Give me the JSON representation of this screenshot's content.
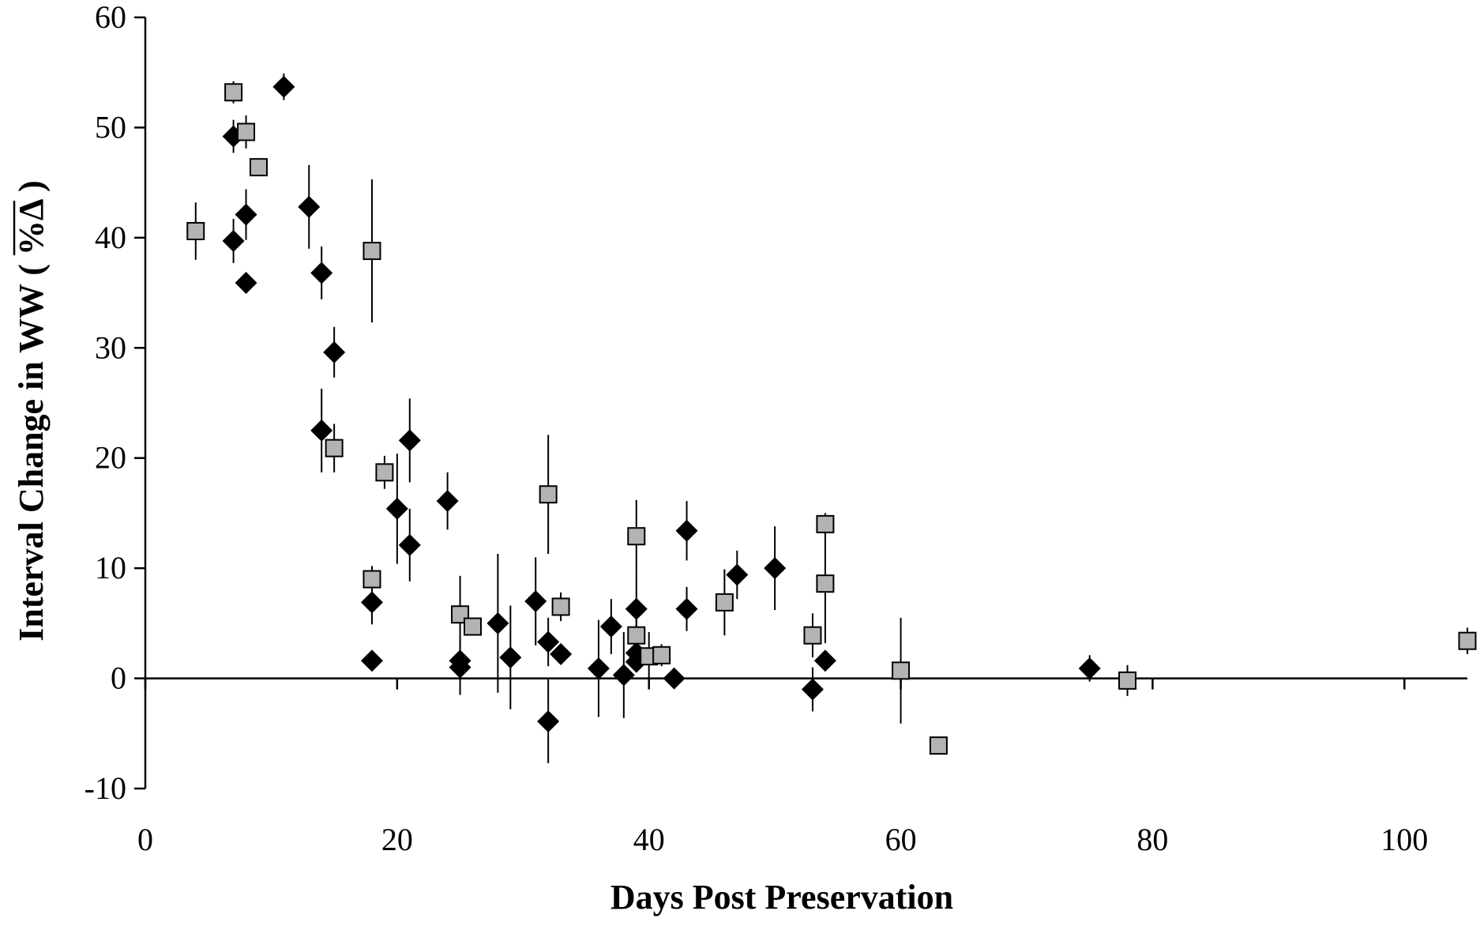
{
  "chart_data": {
    "type": "scatter",
    "xlabel": "Days Post Preservation",
    "ylabel": "Interval Change in WW ( %Δ )",
    "ylabel_overbar": "%Δ",
    "xlim": [
      0,
      105
    ],
    "ylim": [
      -10,
      60
    ],
    "x_ticks": [
      0,
      20,
      40,
      60,
      80,
      100
    ],
    "y_ticks": [
      -10,
      0,
      10,
      20,
      30,
      40,
      50,
      60
    ],
    "x_tick_labels": [
      "0",
      "20",
      "40",
      "60",
      "80",
      "100"
    ],
    "y_tick_labels": [
      "-10",
      "0",
      "10",
      "20",
      "30",
      "40",
      "50",
      "60"
    ],
    "grid": false,
    "legend": "none",
    "series": [
      {
        "marker": "diamond",
        "color": "#000000",
        "points": [
          {
            "x": 7,
            "y": 49.2,
            "err": 1.5
          },
          {
            "x": 7,
            "y": 39.7,
            "err": 2.0
          },
          {
            "x": 8,
            "y": 42.1,
            "err": 2.3
          },
          {
            "x": 8,
            "y": 35.9,
            "err": 0
          },
          {
            "x": 11,
            "y": 53.7,
            "err": 1.2
          },
          {
            "x": 13,
            "y": 42.8,
            "err": 3.8
          },
          {
            "x": 14,
            "y": 36.8,
            "err": 2.4
          },
          {
            "x": 14,
            "y": 22.5,
            "err": 3.8
          },
          {
            "x": 15,
            "y": 29.6,
            "err": 2.3
          },
          {
            "x": 18,
            "y": 6.9,
            "err": 2.0
          },
          {
            "x": 18,
            "y": 1.6,
            "err": 0
          },
          {
            "x": 20,
            "y": 15.4,
            "err": 5.0
          },
          {
            "x": 21,
            "y": 21.6,
            "err": 3.8
          },
          {
            "x": 21,
            "y": 12.1,
            "err": 3.3
          },
          {
            "x": 24,
            "y": 16.1,
            "err": 2.6
          },
          {
            "x": 25,
            "y": 1.6,
            "err": 0
          },
          {
            "x": 25,
            "y": 1.0,
            "err": 2.5
          },
          {
            "x": 28,
            "y": 5.0,
            "err": 6.3
          },
          {
            "x": 29,
            "y": 1.9,
            "err": 4.7
          },
          {
            "x": 31,
            "y": 7.0,
            "err": 4.0
          },
          {
            "x": 32,
            "y": 3.3,
            "err": 2.2
          },
          {
            "x": 32,
            "y": -3.9,
            "err": 3.8
          },
          {
            "x": 33,
            "y": 2.2,
            "err": 0
          },
          {
            "x": 36,
            "y": 0.9,
            "err": 4.4
          },
          {
            "x": 37,
            "y": 4.7,
            "err": 2.5
          },
          {
            "x": 38,
            "y": 0.3,
            "err": 3.9
          },
          {
            "x": 39,
            "y": 6.3,
            "err": 3.3
          },
          {
            "x": 39,
            "y": 2.3,
            "err": 0
          },
          {
            "x": 39,
            "y": 1.5,
            "err": 0
          },
          {
            "x": 42,
            "y": 0.0,
            "err": 0
          },
          {
            "x": 43,
            "y": 13.4,
            "err": 2.7
          },
          {
            "x": 43,
            "y": 6.3,
            "err": 2.0
          },
          {
            "x": 47,
            "y": 9.4,
            "err": 2.2
          },
          {
            "x": 50,
            "y": 10.0,
            "err": 3.8
          },
          {
            "x": 53,
            "y": -1.0,
            "err": 2.0
          },
          {
            "x": 54,
            "y": 1.6,
            "err": 0
          },
          {
            "x": 75,
            "y": 0.9,
            "err": 1.2
          }
        ]
      },
      {
        "marker": "square",
        "color": "#b3b3b3",
        "points": [
          {
            "x": 4,
            "y": 40.6,
            "err": 2.6
          },
          {
            "x": 7,
            "y": 53.2,
            "err": 1.0
          },
          {
            "x": 8,
            "y": 49.6,
            "err": 1.5
          },
          {
            "x": 9,
            "y": 46.4,
            "err": 0
          },
          {
            "x": 15,
            "y": 20.9,
            "err": 2.2
          },
          {
            "x": 18,
            "y": 38.8,
            "err": 6.5
          },
          {
            "x": 18,
            "y": 9.0,
            "err": 1.2
          },
          {
            "x": 19,
            "y": 18.7,
            "err": 1.5
          },
          {
            "x": 25,
            "y": 5.8,
            "err": 3.5
          },
          {
            "x": 26,
            "y": 4.7,
            "err": 0
          },
          {
            "x": 32,
            "y": 16.7,
            "err": 5.4
          },
          {
            "x": 33,
            "y": 6.5,
            "err": 1.3
          },
          {
            "x": 39,
            "y": 12.9,
            "err": 3.3
          },
          {
            "x": 39,
            "y": 3.9,
            "err": 2.0
          },
          {
            "x": 40,
            "y": 2.0,
            "err": 2.2
          },
          {
            "x": 41,
            "y": 2.1,
            "err": 1.0
          },
          {
            "x": 46,
            "y": 6.9,
            "err": 3.0
          },
          {
            "x": 53,
            "y": 3.9,
            "err": 2.0
          },
          {
            "x": 54,
            "y": 14.0,
            "err": 1.0
          },
          {
            "x": 54,
            "y": 8.6,
            "err": 5.4
          },
          {
            "x": 60,
            "y": 0.7,
            "err": 4.8
          },
          {
            "x": 63,
            "y": -6.1,
            "err": 0
          },
          {
            "x": 78,
            "y": -0.2,
            "err": 1.4
          },
          {
            "x": 105,
            "y": 3.4,
            "err": 1.2
          }
        ]
      }
    ]
  }
}
